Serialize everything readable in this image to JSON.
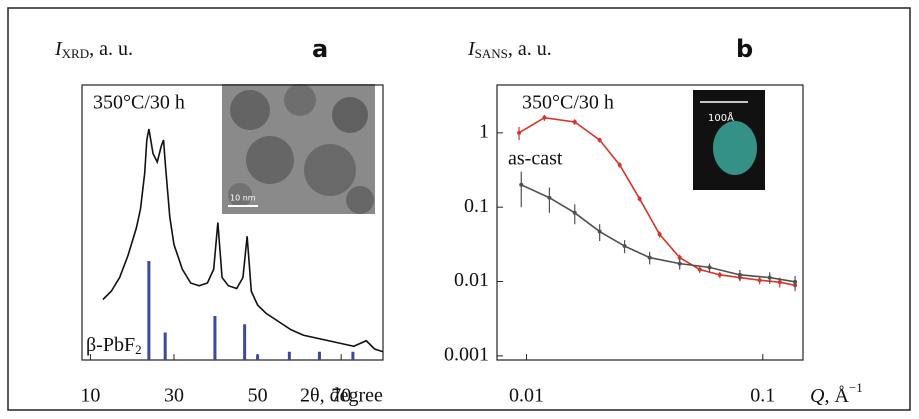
{
  "chart_data": [
    {
      "type": "line",
      "panel_label": "a",
      "y_label": {
        "symbol": "I",
        "subscript": "XRD",
        "unit": ", a. u."
      },
      "x_label": "2θ, degree",
      "annotation": "350°C/30 h",
      "inset_scale_label": "10 nm",
      "xlim": [
        8,
        80
      ],
      "xticks": [
        10,
        30,
        50,
        70
      ],
      "ylim": [
        0,
        100
      ],
      "series": [
        {
          "color": "#111111",
          "x": [
            13,
            15,
            17,
            19,
            21,
            22,
            23,
            23.5,
            24,
            25,
            26,
            27,
            27.5,
            28,
            29,
            30,
            32,
            34,
            36,
            38,
            39.5,
            40.5,
            41.5,
            43,
            45,
            46.5,
            47.5,
            48.5,
            50,
            52,
            55,
            58,
            61,
            64,
            67,
            70,
            73,
            76,
            78,
            80
          ],
          "values": [
            22,
            25,
            30,
            38,
            48,
            55,
            68,
            80,
            84,
            75,
            72,
            78,
            80,
            70,
            52,
            42,
            33,
            28,
            27,
            28,
            33,
            50,
            30,
            27,
            26,
            30,
            45,
            25,
            20,
            17,
            14,
            11,
            9,
            8,
            7,
            6,
            5,
            7,
            4,
            3
          ]
        }
      ],
      "reference": {
        "label": "β-PbF",
        "label_subscript": "2",
        "color": "#3b4a9c",
        "x": [
          24,
          27.9,
          39.8,
          46.9,
          50,
          57.6,
          64.8,
          72.8
        ],
        "values": [
          36,
          10,
          16,
          13,
          2,
          3,
          3,
          3
        ]
      }
    },
    {
      "type": "line",
      "panel_label": "b",
      "y_label": {
        "symbol": "I",
        "subscript": "SANS",
        "unit": ", a. u."
      },
      "x_label": {
        "symbol": "Q",
        "unit": ", Å",
        "superscript": "−1"
      },
      "inset_scale_label": "100Å",
      "xscale": "log",
      "yscale": "log",
      "xlim": [
        0.0075,
        0.148
      ],
      "xticks": [
        0.01,
        0.1
      ],
      "ylim": [
        0.00088,
        4.4
      ],
      "yticks": [
        1,
        0.1,
        0.01,
        0.001
      ],
      "series": [
        {
          "name": "350°C/30 h",
          "color": "#d8352a",
          "x": [
            0.0093,
            0.0119,
            0.016,
            0.0204,
            0.0248,
            0.0301,
            0.0366,
            0.0445,
            0.0541,
            0.0658,
            0.08,
            0.097,
            0.118,
            0.137
          ],
          "values": [
            1.0,
            1.6,
            1.4,
            0.8,
            0.37,
            0.13,
            0.043,
            0.021,
            0.0145,
            0.0123,
            0.0113,
            0.0104,
            0.0098,
            0.0089
          ],
          "errors": [
            0.2,
            0.15,
            0.12,
            0.06,
            0.03,
            0.01,
            0.004,
            0.002,
            0.0015,
            0.0012,
            0.0012,
            0.0012,
            0.0015,
            0.0015
          ]
        },
        {
          "name": "as-cast",
          "color": "#505050",
          "x": [
            0.0095,
            0.0125,
            0.016,
            0.0204,
            0.026,
            0.0332,
            0.0445,
            0.0595,
            0.08,
            0.107,
            0.137
          ],
          "values": [
            0.2,
            0.134,
            0.084,
            0.047,
            0.03,
            0.021,
            0.0174,
            0.0155,
            0.0123,
            0.0113,
            0.0099
          ],
          "errors": [
            0.1,
            0.05,
            0.025,
            0.012,
            0.006,
            0.004,
            0.003,
            0.002,
            0.002,
            0.002,
            0.002
          ]
        }
      ]
    }
  ]
}
